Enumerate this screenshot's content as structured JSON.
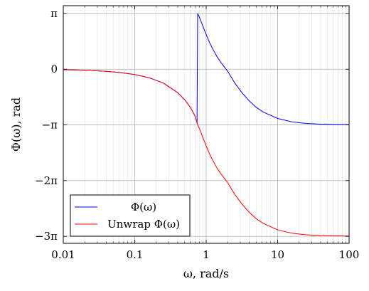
{
  "chart_data": {
    "type": "line",
    "title": "",
    "xlabel": "ω, rad/s",
    "ylabel": "Φ(ω), rad",
    "xscale": "log",
    "xlim": [
      0.01,
      100
    ],
    "ylim": [
      -9.82,
      3.58
    ],
    "x_ticks": [
      0.01,
      0.1,
      1,
      10,
      100
    ],
    "x_tick_labels": [
      "0.01",
      "0.1",
      "1",
      "10",
      "100"
    ],
    "y_ticks": [
      3.14159,
      0,
      -3.14159,
      -6.28319,
      -9.42478
    ],
    "y_tick_labels": [
      "π",
      "0",
      "−π",
      "−2π",
      "−3π"
    ],
    "grid": true,
    "minor_grid": true,
    "legend_position": "bottom-left",
    "series": [
      {
        "name": "Φ(ω)",
        "color": "#0000ff",
        "x": [
          0.01,
          0.0158,
          0.0251,
          0.0398,
          0.0631,
          0.1,
          0.158,
          0.251,
          0.398,
          0.5,
          0.6,
          0.7,
          0.745,
          0.76,
          0.8,
          0.9,
          1.0,
          1.12,
          1.26,
          1.41,
          1.58,
          2.0,
          2.51,
          3.16,
          3.98,
          5.01,
          6.31,
          10,
          15.8,
          25.1,
          39.8,
          63.1,
          100
        ],
        "y": [
          -0.03,
          -0.047,
          -0.075,
          -0.12,
          -0.19,
          -0.3,
          -0.48,
          -0.78,
          -1.32,
          -1.72,
          -2.15,
          -2.65,
          -3.05,
          3.14,
          2.95,
          2.42,
          1.95,
          1.48,
          1.08,
          0.72,
          0.42,
          -0.12,
          -0.78,
          -1.32,
          -1.78,
          -2.15,
          -2.42,
          -2.78,
          -2.97,
          -3.06,
          -3.1,
          -3.12,
          -3.13
        ]
      },
      {
        "name": "Unwrap Φ(ω)",
        "color": "#ff0000",
        "x": [
          0.01,
          0.0158,
          0.0251,
          0.0398,
          0.0631,
          0.1,
          0.158,
          0.251,
          0.398,
          0.5,
          0.6,
          0.7,
          0.76,
          0.8,
          0.9,
          1.0,
          1.12,
          1.26,
          1.41,
          1.58,
          2.0,
          2.51,
          3.16,
          3.98,
          5.01,
          6.31,
          10,
          15.8,
          25.1,
          39.8,
          63.1,
          100
        ],
        "y": [
          -0.03,
          -0.047,
          -0.075,
          -0.12,
          -0.19,
          -0.3,
          -0.48,
          -0.78,
          -1.32,
          -1.72,
          -2.15,
          -2.65,
          -3.14,
          -3.33,
          -3.86,
          -4.33,
          -4.8,
          -5.2,
          -5.56,
          -5.86,
          -6.4,
          -7.06,
          -7.6,
          -8.06,
          -8.43,
          -8.7,
          -9.06,
          -9.25,
          -9.34,
          -9.38,
          -9.4,
          -9.41
        ]
      }
    ]
  }
}
